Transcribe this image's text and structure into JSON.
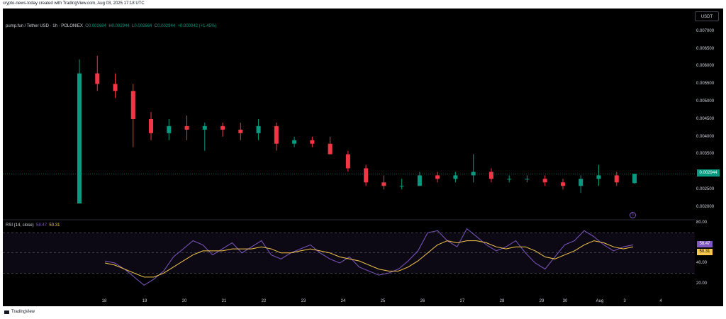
{
  "header": {
    "credit": "crypto-news-today created with TradingView.com, Aug 03, 2025 17:18 UTC"
  },
  "legend": {
    "symbol": "pump.fun / Tether USD · 1h · POLONIEX",
    "open_label": "O",
    "open": "0.002684",
    "high_label": "H",
    "high": "0.002944",
    "low_label": "L",
    "low": "0.002664",
    "close_label": "C",
    "close": "0.002944",
    "change": "+0.000042 (+1.45%)"
  },
  "toolbar": {
    "currency_button": "USDT"
  },
  "price_axis": {
    "ticks": [
      "0.007000",
      "0.006500",
      "0.006000",
      "0.005500",
      "0.005000",
      "0.004500",
      "0.004000",
      "0.003500",
      "0.002500",
      "0.002000"
    ],
    "last_price": "0.002944"
  },
  "rsi": {
    "title": "RSI (14, close)",
    "rsi_value": "58.47",
    "ma_value": "50.31",
    "axis_ticks": [
      "80.00",
      "40.00",
      "20.00"
    ]
  },
  "time_axis": {
    "labels": [
      "18",
      "19",
      "20",
      "21",
      "22",
      "23",
      "24",
      "25",
      "26",
      "27",
      "28",
      "29",
      "30",
      "Aug",
      "3",
      "4"
    ]
  },
  "footer": {
    "brand": "TradingView"
  },
  "colors": {
    "up": "#089981",
    "down": "#f23645",
    "rsi_line": "#7e57c2",
    "rsi_ma": "#f7c84a",
    "background": "#000000",
    "text": "#d1d4dc"
  },
  "chart_data": [
    {
      "type": "candlestick",
      "title": "pump.fun / Tether USD · 1h · POLONIEX",
      "x_labels": [
        "18",
        "19",
        "20",
        "21",
        "22",
        "23",
        "24",
        "25",
        "26",
        "27",
        "28",
        "29",
        "30",
        "Aug",
        "3",
        "4"
      ],
      "ylim": [
        0.0017,
        0.0074
      ],
      "last_price": 0.002944,
      "ohlc_approx": [
        [
          0.0021,
          0.0062,
          0.0021,
          0.0058
        ],
        [
          0.0058,
          0.0063,
          0.0053,
          0.0055
        ],
        [
          0.0055,
          0.0058,
          0.0051,
          0.0053
        ],
        [
          0.0053,
          0.0055,
          0.0037,
          0.0045
        ],
        [
          0.0045,
          0.0047,
          0.0039,
          0.0041
        ],
        [
          0.0041,
          0.0045,
          0.0039,
          0.0043
        ],
        [
          0.0043,
          0.0046,
          0.0039,
          0.0042
        ],
        [
          0.0042,
          0.0044,
          0.0036,
          0.0043
        ],
        [
          0.0043,
          0.0044,
          0.004,
          0.0042
        ],
        [
          0.0042,
          0.0044,
          0.0039,
          0.0041
        ],
        [
          0.0041,
          0.0045,
          0.0039,
          0.0043
        ],
        [
          0.0043,
          0.0044,
          0.0036,
          0.0038
        ],
        [
          0.0038,
          0.004,
          0.0037,
          0.0039
        ],
        [
          0.0039,
          0.004,
          0.0037,
          0.0038
        ],
        [
          0.0038,
          0.004,
          0.0035,
          0.0035
        ],
        [
          0.0035,
          0.0036,
          0.003,
          0.0031
        ],
        [
          0.0031,
          0.0032,
          0.0026,
          0.0027
        ],
        [
          0.0027,
          0.0029,
          0.0025,
          0.0026
        ],
        [
          0.0026,
          0.0028,
          0.0025,
          0.0026
        ],
        [
          0.0026,
          0.003,
          0.0026,
          0.0029
        ],
        [
          0.0029,
          0.003,
          0.0027,
          0.0028
        ],
        [
          0.0028,
          0.003,
          0.0027,
          0.0029
        ],
        [
          0.0029,
          0.0035,
          0.0027,
          0.003
        ],
        [
          0.003,
          0.0031,
          0.0027,
          0.0028
        ],
        [
          0.0028,
          0.0029,
          0.0027,
          0.0028
        ],
        [
          0.0028,
          0.0029,
          0.0027,
          0.0028
        ],
        [
          0.0028,
          0.0029,
          0.0026,
          0.0027
        ],
        [
          0.0027,
          0.0028,
          0.0025,
          0.0026
        ],
        [
          0.0026,
          0.0029,
          0.0024,
          0.0028
        ],
        [
          0.0028,
          0.0032,
          0.0026,
          0.0029
        ],
        [
          0.0029,
          0.003,
          0.0026,
          0.0027
        ],
        [
          0.00268,
          0.002944,
          0.00266,
          0.002944
        ]
      ]
    },
    {
      "type": "line",
      "title": "RSI (14, close)",
      "ylim": [
        0,
        80
      ],
      "series": [
        {
          "name": "RSI",
          "values": [
            42,
            40,
            34,
            26,
            18,
            24,
            32,
            46,
            54,
            62,
            58,
            48,
            54,
            60,
            50,
            56,
            62,
            48,
            44,
            50,
            54,
            58,
            50,
            44,
            40,
            46,
            36,
            32,
            28,
            30,
            34,
            42,
            52,
            70,
            72,
            62,
            56,
            74,
            66,
            58,
            52,
            56,
            62,
            50,
            40,
            34,
            46,
            58,
            62,
            72,
            66,
            58,
            52,
            56,
            58
          ]
        },
        {
          "name": "RSI-based MA",
          "values": [
            40,
            38,
            34,
            30,
            26,
            26,
            30,
            36,
            42,
            48,
            52,
            52,
            52,
            54,
            54,
            54,
            56,
            54,
            50,
            50,
            52,
            54,
            52,
            50,
            46,
            44,
            42,
            38,
            34,
            32,
            32,
            36,
            42,
            50,
            58,
            62,
            60,
            62,
            62,
            60,
            56,
            54,
            56,
            56,
            52,
            46,
            44,
            48,
            52,
            58,
            62,
            60,
            56,
            54,
            56
          ]
        }
      ]
    }
  ]
}
